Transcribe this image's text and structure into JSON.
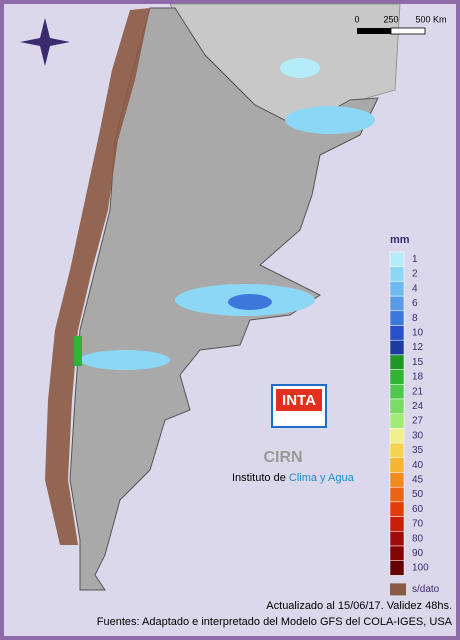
{
  "scale_bar": {
    "labels": [
      "0",
      "250",
      "500 Km"
    ]
  },
  "legend": {
    "title": "mm",
    "items": [
      {
        "label": "1",
        "color": "#b4ecfa"
      },
      {
        "label": "2",
        "color": "#8cd7f5"
      },
      {
        "label": "4",
        "color": "#6eb9f0"
      },
      {
        "label": "6",
        "color": "#5a9be6"
      },
      {
        "label": "8",
        "color": "#3c78dc"
      },
      {
        "label": "10",
        "color": "#2850c8"
      },
      {
        "label": "12",
        "color": "#1e3ca0"
      },
      {
        "label": "15",
        "color": "#1e9628"
      },
      {
        "label": "18",
        "color": "#32b432"
      },
      {
        "label": "21",
        "color": "#50c850"
      },
      {
        "label": "24",
        "color": "#78dc64"
      },
      {
        "label": "27",
        "color": "#a0eb78"
      },
      {
        "label": "30",
        "color": "#f0f08c"
      },
      {
        "label": "35",
        "color": "#f5d250"
      },
      {
        "label": "40",
        "color": "#f5b432"
      },
      {
        "label": "45",
        "color": "#f08c1e"
      },
      {
        "label": "50",
        "color": "#eb6414"
      },
      {
        "label": "60",
        "color": "#e13c0a"
      },
      {
        "label": "70",
        "color": "#c81e0a"
      },
      {
        "label": "80",
        "color": "#a00a0a"
      },
      {
        "label": "90",
        "color": "#820505"
      },
      {
        "label": "100",
        "color": "#640000"
      }
    ],
    "no_data": "s/dato"
  },
  "logo": {
    "brand": "INTA",
    "center": "CIRN",
    "institute_prefix": "Instituto de ",
    "institute_name": "Clima y Agua"
  },
  "footer": {
    "updated": "Actualizado al 15/06/17. Validez 48hs.",
    "source": "Fuentes: Adaptado e interpretado del Modelo GFS del COLA-IGES, USA"
  }
}
